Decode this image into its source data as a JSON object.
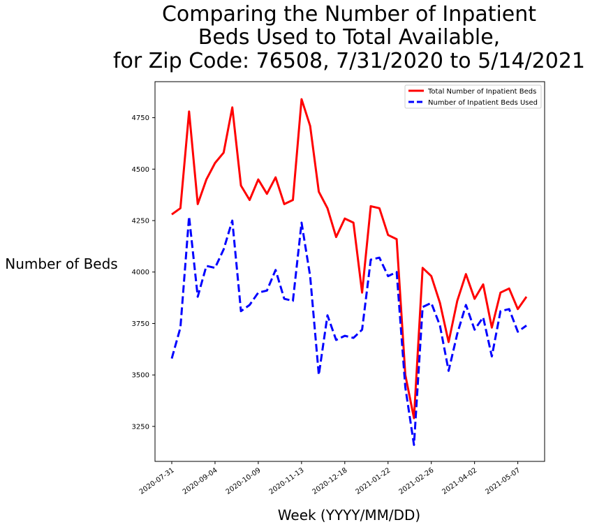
{
  "chart_data": {
    "type": "line",
    "title_lines": [
      "Comparing the Number of Inpatient",
      "Beds Used to Total Available,",
      "for Zip Code: 76508, 7/31/2020 to 5/14/2021"
    ],
    "xlabel": "Week (YYYY/MM/DD)",
    "ylabel": "Number of Beds",
    "ylim": [
      3080,
      4925
    ],
    "yticks": [
      3250,
      3500,
      3750,
      4000,
      4250,
      4500,
      4750
    ],
    "xticks": [
      "2020-07-31",
      "2020-09-04",
      "2020-10-09",
      "2020-11-13",
      "2020-12-18",
      "2021-01-22",
      "2021-02-26",
      "2021-04-02",
      "2021-05-07"
    ],
    "x": [
      "2020-07-31",
      "2020-08-07",
      "2020-08-14",
      "2020-08-21",
      "2020-08-28",
      "2020-09-04",
      "2020-09-11",
      "2020-09-18",
      "2020-09-25",
      "2020-10-02",
      "2020-10-09",
      "2020-10-16",
      "2020-10-23",
      "2020-10-30",
      "2020-11-06",
      "2020-11-13",
      "2020-11-20",
      "2020-11-27",
      "2020-12-04",
      "2020-12-11",
      "2020-12-18",
      "2020-12-25",
      "2021-01-01",
      "2021-01-08",
      "2021-01-15",
      "2021-01-22",
      "2021-01-29",
      "2021-02-05",
      "2021-02-12",
      "2021-02-19",
      "2021-02-26",
      "2021-03-05",
      "2021-03-12",
      "2021-03-19",
      "2021-03-26",
      "2021-04-02",
      "2021-04-09",
      "2021-04-16",
      "2021-04-23",
      "2021-04-30",
      "2021-05-07",
      "2021-05-14"
    ],
    "legend_position": "top-right",
    "series": [
      {
        "name": "Total Number of Inpatient Beds",
        "color": "#ff0000",
        "style": "solid",
        "values": [
          4280,
          4310,
          4780,
          4330,
          4450,
          4530,
          4580,
          4800,
          4420,
          4350,
          4450,
          4380,
          4460,
          4330,
          4350,
          4840,
          4710,
          4390,
          4310,
          4170,
          4260,
          4240,
          3900,
          4320,
          4310,
          4180,
          4160,
          3500,
          3290,
          4020,
          3980,
          3850,
          3660,
          3860,
          3990,
          3870,
          3940,
          3730,
          3900,
          3920,
          3820,
          3880
        ]
      },
      {
        "name": "Number of Inpatient Beds Used",
        "color": "#0000ff",
        "style": "dashed",
        "values": [
          3580,
          3730,
          4270,
          3880,
          4030,
          4020,
          4110,
          4250,
          3810,
          3840,
          3900,
          3910,
          4010,
          3870,
          3860,
          4240,
          3980,
          3500,
          3790,
          3670,
          3690,
          3680,
          3720,
          4060,
          4070,
          3980,
          4000,
          3440,
          3160,
          3830,
          3850,
          3740,
          3520,
          3700,
          3840,
          3720,
          3780,
          3590,
          3810,
          3820,
          3710,
          3740
        ]
      }
    ]
  }
}
